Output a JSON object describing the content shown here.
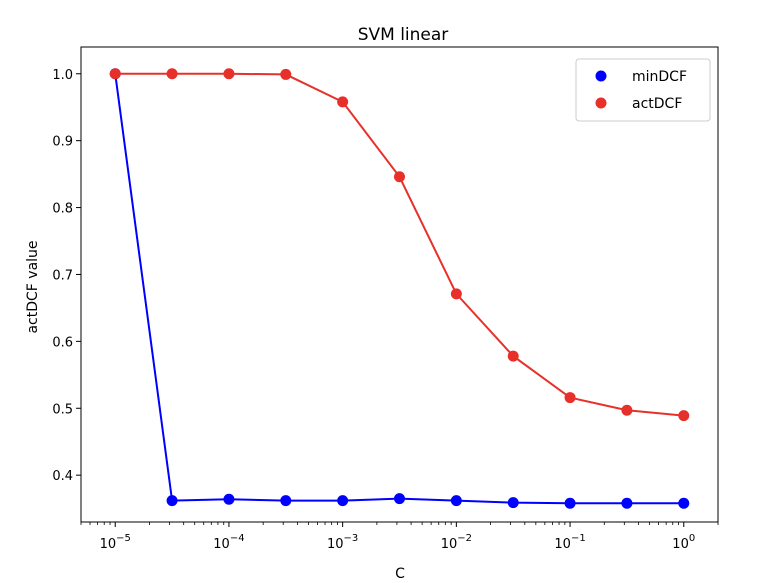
{
  "chart_data": {
    "type": "line",
    "title": "SVM linear",
    "xlabel": "C",
    "ylabel": "actDCF value",
    "xscale": "log",
    "xlim": [
      5e-06,
      2.0
    ],
    "ylim": [
      0.33,
      1.04
    ],
    "grid": false,
    "legend_position": "top-right",
    "x": [
      1e-05,
      3.162e-05,
      0.0001,
      0.0003162,
      0.001,
      0.003162,
      0.01,
      0.03162,
      0.1,
      0.3162,
      1.0
    ],
    "x_tick_labels": [
      {
        "value": 1e-05,
        "base": "10",
        "exp": "−5"
      },
      {
        "value": 0.0001,
        "base": "10",
        "exp": "−4"
      },
      {
        "value": 0.001,
        "base": "10",
        "exp": "−3"
      },
      {
        "value": 0.01,
        "base": "10",
        "exp": "−2"
      },
      {
        "value": 0.1,
        "base": "10",
        "exp": "−1"
      },
      {
        "value": 1.0,
        "base": "10",
        "exp": "0"
      }
    ],
    "y_ticks": [
      0.4,
      0.5,
      0.6,
      0.7,
      0.8,
      0.9,
      1.0
    ],
    "y_tick_labels": [
      "0.4",
      "0.5",
      "0.6",
      "0.7",
      "0.8",
      "0.9",
      "1.0"
    ],
    "series": [
      {
        "name": "minDCF",
        "color": "#0000ff",
        "values": [
          1.0,
          0.362,
          0.364,
          0.362,
          0.362,
          0.365,
          0.362,
          0.359,
          0.358,
          0.358,
          0.358
        ]
      },
      {
        "name": "actDCF",
        "color": "#e8302a",
        "values": [
          1.0,
          1.0,
          1.0,
          0.999,
          0.958,
          0.846,
          0.671,
          0.578,
          0.516,
          0.497,
          0.489
        ]
      }
    ]
  }
}
